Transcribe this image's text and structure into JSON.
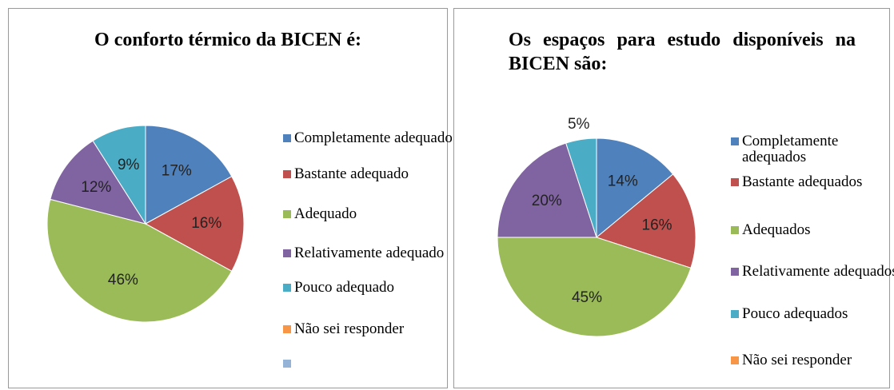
{
  "chart_data": [
    {
      "type": "pie",
      "title": "O conforto térmico da BICEN é:",
      "categories": [
        "Completamente adequado",
        "Bastante adequado",
        "Adequado",
        "Relativamente adequado",
        "Pouco adequado",
        "Não sei responder",
        null
      ],
      "values": [
        17,
        16,
        46,
        12,
        9,
        0,
        0
      ],
      "value_labels": [
        "17%",
        "16%",
        "46%",
        "12%",
        "9%",
        null,
        null
      ],
      "colors": [
        "#4f81bd",
        "#c0504d",
        "#9bbb59",
        "#8064a2",
        "#4bacc6",
        "#f79646",
        "#95b3d7"
      ]
    },
    {
      "type": "pie",
      "title": "Os espaços para estudo disponíveis na BICEN são:",
      "categories": [
        "Completamente adequados",
        "Bastante adequados",
        "Adequados",
        "Relativamente adequados",
        "Pouco adequados",
        "Não sei responder"
      ],
      "values": [
        14,
        16,
        45,
        20,
        5,
        0
      ],
      "value_labels": [
        "14%",
        "16%",
        "45%",
        "20%",
        "5%",
        null
      ],
      "colors": [
        "#4f81bd",
        "#c0504d",
        "#9bbb59",
        "#8064a2",
        "#4bacc6",
        "#f79646"
      ]
    }
  ]
}
